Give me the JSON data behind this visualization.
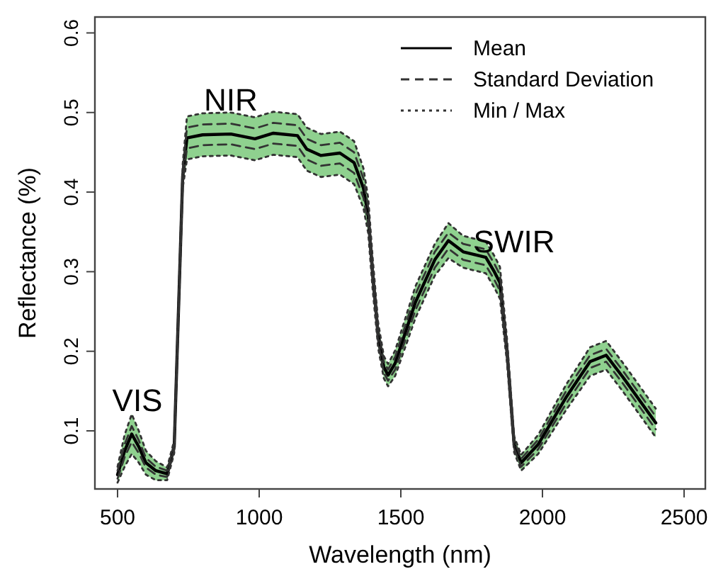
{
  "chart_data": {
    "type": "line",
    "xlabel": "Wavelength (nm)",
    "ylabel": "Reflectance (%)",
    "x": [
      500,
      525,
      550,
      575,
      600,
      635,
      675,
      700,
      715,
      730,
      745,
      800,
      900,
      985,
      1050,
      1135,
      1168,
      1218,
      1285,
      1335,
      1368,
      1385,
      1400,
      1420,
      1440,
      1455,
      1480,
      1552,
      1620,
      1668,
      1720,
      1800,
      1830,
      1850,
      1875,
      1900,
      1925,
      1985,
      2085,
      2168,
      2225,
      2285,
      2400
    ],
    "series": [
      {
        "name": "Mean",
        "color": "#000000",
        "line_style": "solid",
        "values": [
          0.045,
          0.075,
          0.096,
          0.08,
          0.06,
          0.05,
          0.046,
          0.08,
          0.25,
          0.42,
          0.468,
          0.472,
          0.473,
          0.467,
          0.474,
          0.471,
          0.454,
          0.446,
          0.449,
          0.437,
          0.405,
          0.37,
          0.3,
          0.22,
          0.18,
          0.17,
          0.185,
          0.262,
          0.315,
          0.339,
          0.325,
          0.318,
          0.3,
          0.286,
          0.2,
          0.083,
          0.06,
          0.083,
          0.143,
          0.187,
          0.195,
          0.167,
          0.11
        ],
        "lower": [
          0.035,
          0.055,
          0.071,
          0.06,
          0.045,
          0.038,
          0.038,
          0.072,
          0.24,
          0.405,
          0.441,
          0.445,
          0.446,
          0.44,
          0.447,
          0.444,
          0.427,
          0.419,
          0.422,
          0.41,
          0.38,
          0.348,
          0.28,
          0.204,
          0.166,
          0.156,
          0.169,
          0.242,
          0.295,
          0.317,
          0.305,
          0.298,
          0.28,
          0.266,
          0.185,
          0.073,
          0.05,
          0.071,
          0.127,
          0.169,
          0.177,
          0.149,
          0.092
        ],
        "upper": [
          0.055,
          0.095,
          0.121,
          0.1,
          0.075,
          0.062,
          0.054,
          0.088,
          0.26,
          0.435,
          0.495,
          0.499,
          0.5,
          0.494,
          0.501,
          0.498,
          0.481,
          0.473,
          0.476,
          0.464,
          0.43,
          0.392,
          0.32,
          0.236,
          0.194,
          0.184,
          0.201,
          0.282,
          0.335,
          0.361,
          0.345,
          0.338,
          0.32,
          0.306,
          0.215,
          0.093,
          0.07,
          0.095,
          0.159,
          0.205,
          0.213,
          0.185,
          0.128
        ]
      },
      {
        "name": "Standard Deviation",
        "color": "#333333",
        "line_style": "dashed",
        "values": [
          0.05,
          0.083,
          0.106,
          0.088,
          0.066,
          0.055,
          0.05,
          0.084,
          0.255,
          0.428,
          0.481,
          0.485,
          0.486,
          0.48,
          0.487,
          0.484,
          0.467,
          0.459,
          0.462,
          0.45,
          0.417,
          0.38,
          0.31,
          0.228,
          0.187,
          0.177,
          0.193,
          0.272,
          0.325,
          0.349,
          0.335,
          0.328,
          0.31,
          0.296,
          0.208,
          0.088,
          0.065,
          0.089,
          0.151,
          0.195,
          0.203,
          0.175,
          0.118
        ]
      },
      {
        "color": "#333333",
        "line_style": "dashed",
        "values": [
          0.04,
          0.067,
          0.086,
          0.072,
          0.054,
          0.045,
          0.042,
          0.076,
          0.245,
          0.412,
          0.455,
          0.459,
          0.46,
          0.454,
          0.461,
          0.458,
          0.441,
          0.433,
          0.436,
          0.424,
          0.393,
          0.36,
          0.29,
          0.212,
          0.173,
          0.163,
          0.177,
          0.252,
          0.305,
          0.329,
          0.315,
          0.308,
          0.29,
          0.276,
          0.192,
          0.078,
          0.055,
          0.077,
          0.135,
          0.179,
          0.187,
          0.159,
          0.102
        ]
      },
      {
        "name": "Min / Max",
        "color": "#333333",
        "line_style": "dotted",
        "values": [
          0.055,
          0.095,
          0.121,
          0.1,
          0.075,
          0.062,
          0.054,
          0.088,
          0.26,
          0.435,
          0.495,
          0.499,
          0.5,
          0.494,
          0.501,
          0.498,
          0.481,
          0.473,
          0.476,
          0.464,
          0.43,
          0.392,
          0.32,
          0.236,
          0.194,
          0.184,
          0.201,
          0.282,
          0.335,
          0.361,
          0.345,
          0.338,
          0.32,
          0.306,
          0.215,
          0.093,
          0.07,
          0.095,
          0.159,
          0.205,
          0.213,
          0.185,
          0.128
        ]
      },
      {
        "color": "#333333",
        "line_style": "dotted",
        "values": [
          0.035,
          0.055,
          0.071,
          0.06,
          0.045,
          0.038,
          0.038,
          0.072,
          0.24,
          0.405,
          0.441,
          0.445,
          0.446,
          0.44,
          0.447,
          0.444,
          0.427,
          0.419,
          0.422,
          0.41,
          0.38,
          0.348,
          0.28,
          0.204,
          0.166,
          0.156,
          0.169,
          0.242,
          0.295,
          0.317,
          0.305,
          0.298,
          0.28,
          0.266,
          0.185,
          0.073,
          0.05,
          0.071,
          0.127,
          0.169,
          0.177,
          0.149,
          0.092
        ]
      }
    ],
    "annotations": [
      "VIS",
      "NIR",
      "SWIR"
    ],
    "xlim": [
      420,
      2575
    ],
    "ylim": [
      0.027,
      0.62
    ],
    "xticks": [
      500,
      1000,
      1500,
      2000,
      2500
    ],
    "yticks": [
      0.1,
      0.2,
      0.3,
      0.4,
      0.5,
      0.6
    ],
    "grid": false,
    "legend": "top right"
  }
}
